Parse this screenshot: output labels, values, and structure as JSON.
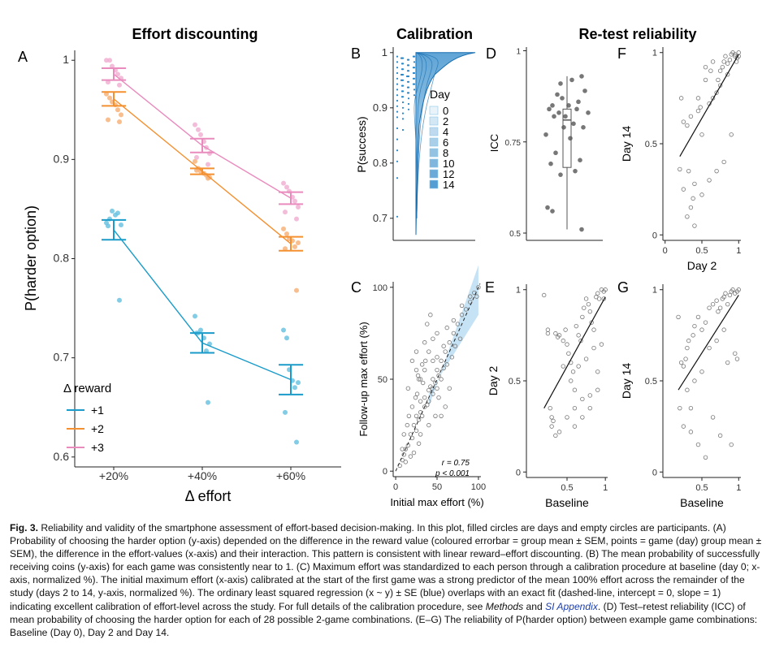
{
  "figure": {
    "titles": {
      "effort": "Effort discounting",
      "calibration": "Calibration",
      "retest": "Re-test reliability"
    },
    "panel_letters": {
      "A": "A",
      "B": "B",
      "C": "C",
      "D": "D",
      "E": "E",
      "F": "F",
      "G": "G"
    }
  },
  "caption": {
    "fig_label": "Fig. 3.",
    "intro": "Reliability and validity of the smartphone assessment of effort-based decision-making. In this plot, filled circles are days and empty circles are participants.",
    "part_a": "(A) Probability of choosing the harder option (y-axis) depended on the difference in the reward value (coloured errorbar = group mean ± SEM, points = game (day) group mean ± SEM), the difference in the effort-values (x-axis) and their interaction. This pattern is consistent with linear reward–effort discounting.",
    "part_b": "(B) The mean probability of successfully receiving coins (y-axis) for each game was consistently near to 1.",
    "part_c": "(C) Maximum effort was standardized to each person through a calibration procedure at baseline (day 0; x-axis, normalized %). The initial maximum effort (x-axis) calibrated at the start of the first game was a strong predictor of the mean 100% effort across the remainder of the study (days 2 to 14, y-axis, normalized %). The ordinary least squared regression (x ~ y) ± SE (blue) overlaps with an exact fit (dashed-line, intercept = 0, slope = 1) indicating excellent calibration of effort-level across the study. For full details of the calibration procedure, see",
    "methods": "Methods",
    "and": "and",
    "si": "SI Appendix",
    "part_d": ". (D) Test–retest reliability (ICC) of mean probability of choosing the harder option for each of 28 possible 2-game combinations.",
    "part_eg": "(E–G) The reliability of P(harder option) between example game combinations: Baseline (Day 0), Day 2 and Day 14."
  },
  "chart_data": [
    {
      "panel": "A",
      "type": "line",
      "title": "Effort discounting",
      "xlabel": "Δ effort",
      "ylabel": "P(harder option)",
      "categories": [
        "+20%",
        "+40%",
        "+60%"
      ],
      "ylim": [
        0.59,
        1.01
      ],
      "yticks": [
        "0.6",
        "0.7",
        "0.8",
        "0.9",
        "1"
      ],
      "legend_title": "Δ reward",
      "legend_position": "bottom-left",
      "series": [
        {
          "name": "+1",
          "color": "#1a9bc9",
          "light": "#6cc3e2",
          "values": [
            0.829,
            0.715,
            0.678
          ],
          "sem": [
            0.01,
            0.01,
            0.015
          ],
          "points": [
            [
              0.836,
              0.84,
              0.848,
              0.844,
              0.846,
              0.834,
              0.833,
              0.758
            ],
            [
              0.742,
              0.725,
              0.728,
              0.72,
              0.707,
              0.714,
              0.725,
              0.655
            ],
            [
              0.728,
              0.72,
              0.688,
              0.677,
              0.67,
              0.675,
              0.645,
              0.615
            ]
          ]
        },
        {
          "name": "+2",
          "color": "#f4902f",
          "light": "#f7b37a",
          "values": [
            0.961,
            0.888,
            0.815
          ],
          "sem": [
            0.007,
            0.003,
            0.007
          ],
          "points": [
            [
              0.966,
              0.962,
              0.958,
              0.955,
              0.95,
              0.945,
              0.94,
              0.938
            ],
            [
              0.898,
              0.891,
              0.888,
              0.886,
              0.884,
              0.882,
              0.889,
              0.881
            ],
            [
              0.83,
              0.825,
              0.82,
              0.818,
              0.812,
              0.816,
              0.81,
              0.768
            ]
          ]
        },
        {
          "name": "+3",
          "color": "#e98bbd",
          "light": "#f1b2d3",
          "values": [
            0.986,
            0.914,
            0.861
          ],
          "sem": [
            0.006,
            0.007,
            0.006
          ],
          "points": [
            [
              1.0,
              1.0,
              0.994,
              0.99,
              0.986,
              0.982,
              0.978,
              0.975
            ],
            [
              0.935,
              0.93,
              0.925,
              0.918,
              0.912,
              0.906,
              0.902,
              0.895
            ],
            [
              0.876,
              0.872,
              0.868,
              0.862,
              0.858,
              0.852,
              0.847,
              0.84
            ]
          ]
        }
      ]
    },
    {
      "panel": "B",
      "type": "area",
      "title": "Calibration",
      "ylabel": "P(success)",
      "ylim": [
        0.66,
        1.01
      ],
      "yticks": [
        "0.7",
        "0.8",
        "0.9",
        "1"
      ],
      "legend_title": "Day",
      "legend_position": "right",
      "legend": [
        "0",
        "2",
        "4",
        "6",
        "8",
        "10",
        "12",
        "14"
      ]
    },
    {
      "panel": "C",
      "type": "scatter",
      "xlabel": "Initial max effort (%)",
      "ylabel": "Follow-up max effort (%)",
      "xlim": [
        -3,
        103
      ],
      "ylim": [
        -3,
        103
      ],
      "xticks": [
        "0",
        "50",
        "100"
      ],
      "yticks": [
        "0",
        "50",
        "100"
      ],
      "fit": {
        "intercept": 0,
        "slope": 1,
        "style": "dashed"
      },
      "annotations": {
        "r": "r = 0.75",
        "p": "p < 0.001"
      },
      "x": [
        5,
        8,
        10,
        12,
        15,
        18,
        20,
        22,
        25,
        25,
        28,
        30,
        30,
        32,
        35,
        35,
        38,
        40,
        40,
        42,
        45,
        45,
        48,
        50,
        50,
        52,
        55,
        55,
        58,
        60,
        62,
        65,
        68,
        70,
        72,
        75,
        78,
        80,
        85,
        90,
        95,
        100,
        15,
        20,
        25,
        30,
        35,
        40,
        45,
        50,
        30,
        28,
        22,
        18,
        12,
        8,
        55,
        60,
        65,
        40,
        35,
        45,
        38,
        42,
        48,
        52,
        25,
        33,
        27,
        36,
        44,
        50,
        58,
        62,
        70,
        80,
        90,
        98,
        10,
        14,
        16,
        20,
        24,
        26,
        28,
        32
      ],
      "y": [
        3,
        6,
        9,
        12,
        14,
        20,
        18,
        25,
        22,
        30,
        28,
        32,
        38,
        30,
        35,
        40,
        36,
        44,
        38,
        46,
        42,
        50,
        48,
        55,
        45,
        52,
        60,
        50,
        56,
        65,
        58,
        70,
        62,
        75,
        68,
        80,
        72,
        85,
        88,
        95,
        97,
        100,
        45,
        60,
        55,
        50,
        70,
        65,
        72,
        75,
        20,
        15,
        10,
        8,
        5,
        12,
        30,
        35,
        45,
        25,
        55,
        60,
        80,
        85,
        30,
        40,
        65,
        48,
        52,
        60,
        45,
        62,
        68,
        78,
        82,
        90,
        92,
        95,
        20,
        25,
        30,
        35,
        40,
        42,
        50,
        58
      ]
    },
    {
      "panel": "D",
      "type": "scatter",
      "ylabel": "ICC",
      "ylim": [
        0.48,
        1.01
      ],
      "yticks": [
        "0.5",
        "0.75",
        "1"
      ],
      "values": [
        0.93,
        0.92,
        0.91,
        0.89,
        0.88,
        0.87,
        0.86,
        0.85,
        0.85,
        0.84,
        0.84,
        0.83,
        0.83,
        0.82,
        0.82,
        0.8,
        0.79,
        0.79,
        0.77,
        0.76,
        0.72,
        0.7,
        0.69,
        0.67,
        0.66,
        0.57,
        0.56,
        0.51
      ],
      "box": {
        "min": 0.51,
        "q1": 0.68,
        "median": 0.81,
        "q3": 0.84,
        "max": 0.93
      }
    },
    {
      "panel": "E",
      "type": "scatter",
      "xlabel": "Baseline",
      "ylabel": "Day 2",
      "xlim": [
        -0.03,
        1.03
      ],
      "ylim": [
        -0.03,
        1.03
      ],
      "xticks": [
        "0.5",
        "1"
      ],
      "yticks": [
        "0",
        "0.5",
        "1"
      ],
      "fit": {
        "x": [
          0.2,
          1.0
        ],
        "y": [
          0.35,
          0.96
        ]
      },
      "x": [
        0.2,
        0.25,
        0.28,
        0.3,
        0.32,
        0.35,
        0.38,
        0.4,
        0.45,
        0.48,
        0.5,
        0.52,
        0.55,
        0.58,
        0.6,
        0.62,
        0.65,
        0.68,
        0.7,
        0.72,
        0.75,
        0.78,
        0.8,
        0.82,
        0.85,
        0.88,
        0.9,
        0.92,
        0.95,
        0.98,
        1.0,
        0.3,
        0.4,
        0.5,
        0.6,
        0.7,
        0.8,
        0.9,
        0.55,
        0.65,
        0.75,
        0.85,
        0.95,
        0.45,
        0.35,
        0.25,
        0.6,
        0.7,
        0.8,
        0.9,
        0.98
      ],
      "y": [
        0.97,
        0.76,
        0.35,
        0.3,
        0.28,
        0.76,
        0.74,
        0.75,
        0.72,
        0.78,
        0.7,
        0.65,
        0.6,
        0.55,
        0.45,
        0.8,
        0.75,
        0.72,
        0.85,
        0.9,
        0.95,
        0.92,
        0.88,
        0.82,
        0.78,
        0.96,
        0.98,
        0.95,
        1.0,
        0.99,
        1.0,
        0.25,
        0.22,
        0.3,
        0.35,
        0.4,
        0.42,
        0.45,
        0.5,
        0.58,
        0.62,
        0.68,
        0.7,
        0.58,
        0.2,
        0.78,
        0.25,
        0.3,
        0.35,
        0.55,
        0.95
      ]
    },
    {
      "panel": "F",
      "type": "scatter",
      "xlabel": "Day 2",
      "ylabel": "Day 14",
      "xlim": [
        -0.03,
        1.03
      ],
      "ylim": [
        -0.03,
        1.03
      ],
      "xticks": [
        "0",
        "0.5",
        "1"
      ],
      "yticks": [
        "0",
        "0.5",
        "1"
      ],
      "fit": {
        "x": [
          0.2,
          1.0
        ],
        "y": [
          0.43,
          0.99
        ]
      },
      "x": [
        0.2,
        0.22,
        0.25,
        0.3,
        0.32,
        0.35,
        0.38,
        0.4,
        0.45,
        0.48,
        0.5,
        0.55,
        0.6,
        0.62,
        0.65,
        0.7,
        0.72,
        0.75,
        0.78,
        0.8,
        0.82,
        0.85,
        0.88,
        0.9,
        0.92,
        0.95,
        0.98,
        1.0,
        0.3,
        0.4,
        0.5,
        0.6,
        0.7,
        0.8,
        0.9,
        0.25,
        0.35,
        0.45,
        0.55,
        0.65,
        0.75,
        0.85,
        0.95,
        1.0,
        0.97
      ],
      "y": [
        0.36,
        0.75,
        0.62,
        0.6,
        0.35,
        0.65,
        0.2,
        0.28,
        0.75,
        0.7,
        0.55,
        0.85,
        0.72,
        0.9,
        0.95,
        0.78,
        0.85,
        0.9,
        0.92,
        0.95,
        0.98,
        0.88,
        0.96,
        0.99,
        1.0,
        0.98,
        0.97,
        1.0,
        0.1,
        0.05,
        0.22,
        0.3,
        0.35,
        0.4,
        0.55,
        0.25,
        0.15,
        0.68,
        0.92,
        0.75,
        0.82,
        0.94,
        0.99,
        0.98,
        0.95
      ]
    },
    {
      "panel": "G",
      "type": "scatter",
      "xlabel": "Baseline",
      "ylabel": "Day 14",
      "xlim": [
        -0.03,
        1.03
      ],
      "ylim": [
        -0.03,
        1.03
      ],
      "xticks": [
        "0.5",
        "1"
      ],
      "yticks": [
        "0",
        "0.5",
        "1"
      ],
      "fit": {
        "x": [
          0.18,
          1.0
        ],
        "y": [
          0.45,
          0.97
        ]
      },
      "x": [
        0.18,
        0.2,
        0.22,
        0.25,
        0.28,
        0.3,
        0.32,
        0.35,
        0.38,
        0.4,
        0.45,
        0.5,
        0.55,
        0.6,
        0.65,
        0.7,
        0.72,
        0.75,
        0.78,
        0.8,
        0.82,
        0.85,
        0.88,
        0.9,
        0.92,
        0.95,
        0.98,
        1.0,
        0.25,
        0.35,
        0.45,
        0.55,
        0.65,
        0.75,
        0.85,
        0.95,
        0.3,
        0.4,
        0.5,
        0.6,
        0.7,
        0.8,
        0.9,
        0.98
      ],
      "y": [
        0.85,
        0.35,
        0.6,
        0.58,
        0.62,
        0.68,
        0.72,
        0.35,
        0.75,
        0.8,
        0.85,
        0.78,
        0.82,
        0.9,
        0.92,
        0.94,
        0.88,
        0.9,
        0.95,
        0.96,
        0.98,
        0.92,
        0.97,
        0.99,
        1.0,
        0.98,
        0.99,
        1.0,
        0.25,
        0.22,
        0.15,
        0.08,
        0.3,
        0.2,
        0.6,
        0.65,
        0.45,
        0.5,
        0.55,
        0.68,
        0.72,
        0.78,
        0.15,
        0.62
      ]
    }
  ]
}
